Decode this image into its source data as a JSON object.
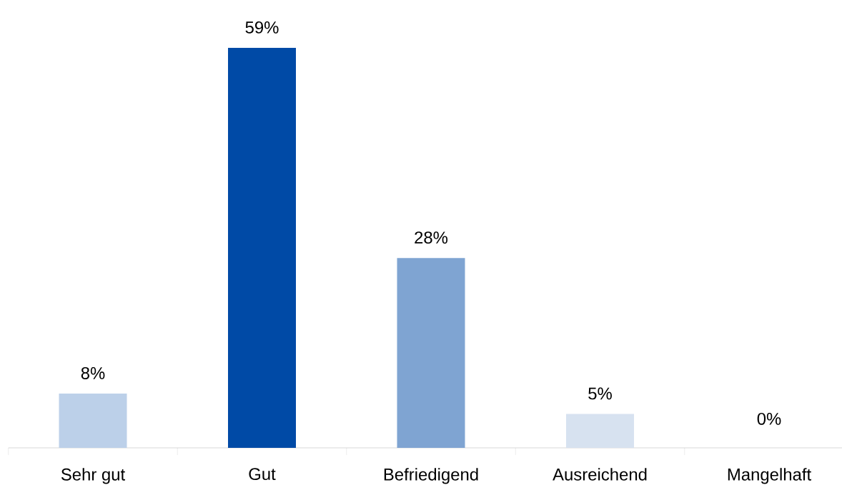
{
  "chart_data": {
    "type": "bar",
    "categories": [
      "Sehr gut",
      "Gut",
      "Befriedigend",
      "Ausreichend",
      "Mangelhaft"
    ],
    "values": [
      8,
      59,
      28,
      5,
      0
    ],
    "colors": [
      "#bcd0e9",
      "#004aa6",
      "#7fa4d2",
      "#d7e2f0",
      null
    ],
    "value_labels": [
      "8%",
      "59%",
      "28%",
      "5%",
      "0%"
    ]
  }
}
